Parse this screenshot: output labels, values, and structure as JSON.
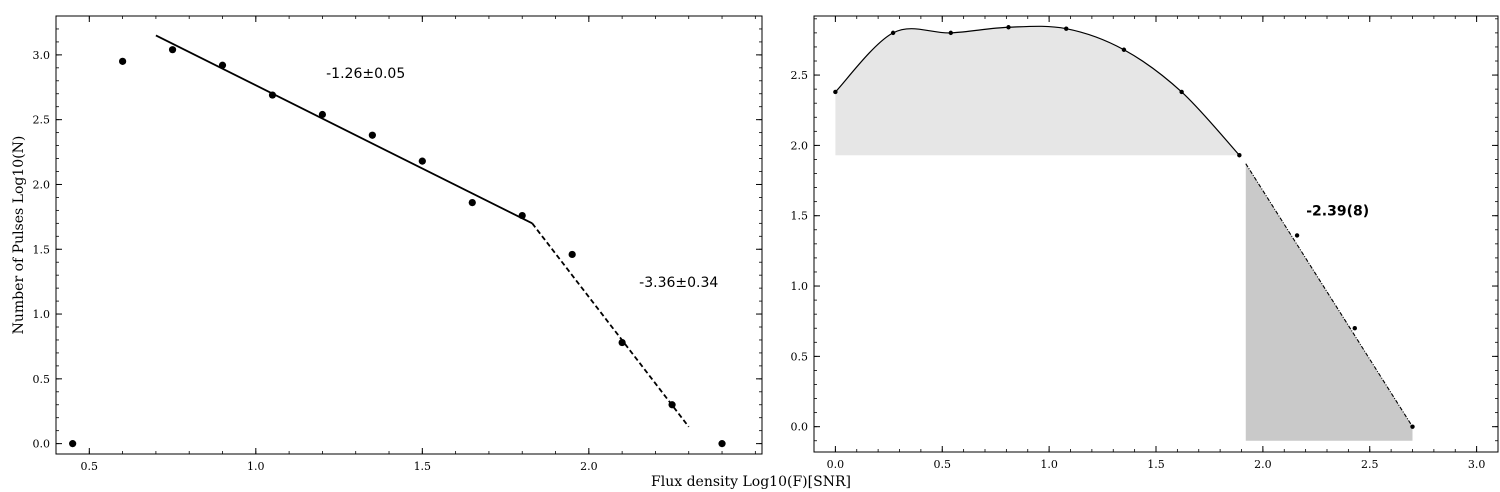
{
  "figure": {
    "xlabel": "Flux density Log10(F)[SNR]"
  },
  "chart_data": [
    {
      "type": "scatter",
      "title": "",
      "xlabel": "Flux density Log10(F)[SNR]",
      "ylabel": "Number of Pulses Log10(N)",
      "xlim": [
        0.4,
        2.52
      ],
      "ylim": [
        -0.08,
        3.3
      ],
      "xticks": [
        0.5,
        1.0,
        1.5,
        2.0
      ],
      "xtick_labels": [
        "0.5",
        "1.0",
        "1.5",
        "2.0"
      ],
      "yticks": [
        0.0,
        0.5,
        1.0,
        1.5,
        2.0,
        2.5,
        3.0
      ],
      "ytick_labels": [
        "0.0",
        "0.5",
        "1.0",
        "1.5",
        "2.0",
        "2.5",
        "3.0"
      ],
      "points": {
        "x": [
          0.45,
          0.6,
          0.75,
          0.9,
          1.05,
          1.2,
          1.35,
          1.5,
          1.65,
          1.8,
          1.95,
          2.1,
          2.25,
          2.4
        ],
        "y": [
          0.0,
          2.95,
          3.04,
          2.92,
          2.69,
          2.54,
          2.38,
          2.18,
          1.86,
          1.76,
          1.46,
          0.78,
          0.3,
          0.0
        ]
      },
      "fits": [
        {
          "style": "solid",
          "x": [
            0.7,
            1.83
          ],
          "y": [
            3.15,
            1.7
          ],
          "label": "-1.26±0.05"
        },
        {
          "style": "dashed",
          "x": [
            1.83,
            2.3
          ],
          "y": [
            1.7,
            0.13
          ],
          "label": "-3.36±0.34"
        }
      ],
      "grid": false
    },
    {
      "type": "area",
      "title": "",
      "xlabel": "",
      "ylabel": "",
      "xlim": [
        -0.1,
        3.1
      ],
      "ylim": [
        -0.18,
        2.92
      ],
      "xticks": [
        0.0,
        0.5,
        1.0,
        1.5,
        2.0,
        2.5,
        3.0
      ],
      "xtick_labels": [
        "0.0",
        "0.5",
        "1.0",
        "1.5",
        "2.0",
        "2.5",
        "3.0"
      ],
      "yticks": [
        0.0,
        0.5,
        1.0,
        1.5,
        2.0,
        2.5
      ],
      "ytick_labels": [
        "0.0",
        "0.5",
        "1.0",
        "1.5",
        "2.0",
        "2.5"
      ],
      "points": {
        "x": [
          0.0,
          0.27,
          0.54,
          0.81,
          1.08,
          1.35,
          1.62,
          1.89,
          2.16,
          2.43,
          2.7
        ],
        "y": [
          2.38,
          2.8,
          2.8,
          2.84,
          2.83,
          2.68,
          2.38,
          1.93,
          1.36,
          0.7,
          0.0
        ]
      },
      "fit": {
        "style": "dash-dot",
        "x": [
          1.92,
          2.7
        ],
        "y": [
          1.87,
          0.0
        ],
        "label": "-2.39(8)"
      },
      "shaded_regions": [
        {
          "x": [
            0.0,
            1.89
          ],
          "y_floor": 1.93,
          "color": "#e6e6e6"
        },
        {
          "x": [
            1.92,
            2.7
          ],
          "y_floor": -0.1,
          "color": "#c9c9c9"
        }
      ],
      "grid": false
    }
  ]
}
